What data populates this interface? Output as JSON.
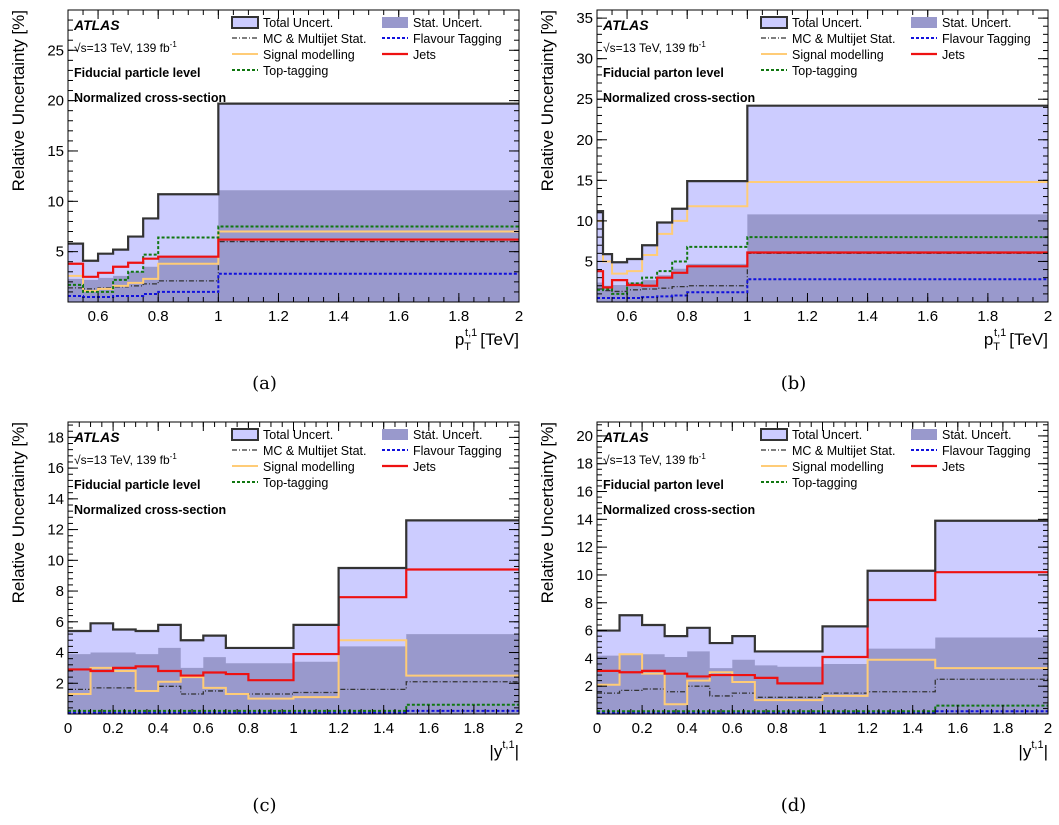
{
  "figure": {
    "captions": [
      "(a)",
      "(b)",
      "(c)",
      "(d)"
    ]
  },
  "legend_labels": {
    "total": "Total Uncert.",
    "stat": "Stat. Uncert.",
    "mc": "MC & Multijet Stat.",
    "flav": "Flavour Tagging",
    "signal": "Signal modelling",
    "jets": "Jets",
    "toptag": "Top-tagging"
  },
  "colors": {
    "total_fill": "#ccccff",
    "stat_fill": "#9999cc",
    "total_line": "#333333",
    "mc_line": "#333333",
    "flav_line": "#1111dd",
    "signal_line": "#ffcc77",
    "jets_line": "#ee1111",
    "toptag_line": "#117711"
  },
  "chart_data": [
    {
      "type": "line",
      "panel": "(a)",
      "experiment": "ATLAS",
      "energy_lumi": "√s=13 TeV, 139 fb",
      "lumi_sup": "-1",
      "level": "Fiducial particle level",
      "normalization": "Normalized cross-section",
      "xlabel": "p",
      "xlabel_sub": "T",
      "xlabel_sup": "t,1",
      "xlabel_unit": "[TeV]",
      "ylabel": "Relative Uncertainty [%]",
      "xlim": [
        0.5,
        2.0
      ],
      "ylim": [
        0,
        29
      ],
      "xticks": [
        0.6,
        0.8,
        1.0,
        1.2,
        1.4,
        1.6,
        1.8,
        2.0
      ],
      "xtick_labels": [
        "0.6",
        "0.8",
        "1",
        "1.2",
        "1.4",
        "1.6",
        "1.8",
        "2"
      ],
      "yticks": [
        5,
        10,
        15,
        20,
        25
      ],
      "ytick_labels": [
        "5",
        "10",
        "15",
        "20",
        "25"
      ],
      "bin_edges": [
        0.5,
        0.55,
        0.6,
        0.65,
        0.7,
        0.75,
        0.8,
        1.0,
        2.0
      ],
      "total": [
        5.8,
        4.1,
        4.8,
        5.2,
        6.5,
        8.3,
        10.7,
        19.7
      ],
      "stat": [
        2.3,
        2.2,
        2.4,
        2.6,
        3.0,
        3.5,
        4.6,
        11.1
      ],
      "series": [
        {
          "name": "MC & Multijet Stat.",
          "key": "mc",
          "values": [
            1.4,
            1.3,
            1.4,
            1.5,
            1.6,
            1.8,
            2.1,
            6.0
          ]
        },
        {
          "name": "Flavour Tagging",
          "key": "flav",
          "values": [
            0.6,
            0.5,
            0.5,
            0.6,
            0.6,
            0.8,
            1.0,
            2.8
          ]
        },
        {
          "name": "Signal modelling",
          "key": "signal",
          "values": [
            2.6,
            1.1,
            1.3,
            1.6,
            1.9,
            2.3,
            3.8,
            7.0
          ]
        },
        {
          "name": "Top-tagging",
          "key": "toptag",
          "values": [
            1.7,
            1.0,
            1.0,
            2.2,
            3.0,
            4.7,
            6.4,
            7.5
          ]
        },
        {
          "name": "Jets",
          "key": "jets",
          "values": [
            3.8,
            2.5,
            2.9,
            3.5,
            3.9,
            4.3,
            4.5,
            6.2
          ]
        }
      ]
    },
    {
      "type": "line",
      "panel": "(b)",
      "experiment": "ATLAS",
      "energy_lumi": "√s=13 TeV, 139 fb",
      "lumi_sup": "-1",
      "level": "Fiducial parton level",
      "normalization": "Normalized cross-section",
      "xlabel": "p",
      "xlabel_sub": "T",
      "xlabel_sup": "t,1",
      "xlabel_unit": "[TeV]",
      "ylabel": "Relative Uncertainty [%]",
      "xlim": [
        0.5,
        2.0
      ],
      "ylim": [
        0,
        36
      ],
      "xticks": [
        0.6,
        0.8,
        1.0,
        1.2,
        1.4,
        1.6,
        1.8,
        2.0
      ],
      "xtick_labels": [
        "0.6",
        "0.8",
        "1",
        "1.2",
        "1.4",
        "1.6",
        "1.8",
        "2"
      ],
      "yticks": [
        5,
        10,
        15,
        20,
        25,
        30,
        35
      ],
      "ytick_labels": [
        "5",
        "10",
        "15",
        "20",
        "25",
        "30",
        "35"
      ],
      "bin_edges": [
        0.5,
        0.52,
        0.55,
        0.6,
        0.65,
        0.7,
        0.75,
        0.8,
        1.0,
        2.0
      ],
      "total": [
        11.2,
        5.9,
        4.9,
        5.3,
        7.0,
        9.8,
        11.5,
        14.9,
        24.2
      ],
      "stat": [
        2.4,
        2.0,
        2.1,
        2.4,
        2.7,
        3.3,
        4.1,
        4.7,
        10.8
      ],
      "series": [
        {
          "name": "MC & Multijet Stat.",
          "key": "mc",
          "values": [
            1.6,
            1.4,
            1.3,
            1.5,
            1.6,
            1.7,
            1.9,
            2.0,
            6.0
          ]
        },
        {
          "name": "Flavour Tagging",
          "key": "flav",
          "values": [
            0.5,
            0.5,
            0.5,
            0.5,
            0.6,
            0.7,
            0.8,
            1.2,
            2.8
          ]
        },
        {
          "name": "Signal modelling",
          "key": "signal",
          "values": [
            10.0,
            5.0,
            3.5,
            3.8,
            5.8,
            8.4,
            10.0,
            11.8,
            14.8
          ]
        },
        {
          "name": "Top-tagging",
          "key": "toptag",
          "values": [
            1.5,
            1.6,
            1.0,
            2.3,
            3.0,
            3.8,
            5.0,
            6.8,
            8.0
          ]
        },
        {
          "name": "Jets",
          "key": "jets",
          "values": [
            3.8,
            1.8,
            2.7,
            2.1,
            2.0,
            3.0,
            3.6,
            4.4,
            6.1
          ]
        }
      ]
    },
    {
      "type": "line",
      "panel": "(c)",
      "experiment": "ATLAS",
      "energy_lumi": "√s=13 TeV, 139 fb",
      "lumi_sup": "-1",
      "level": "Fiducial particle level",
      "normalization": "Normalized cross-section",
      "xlabel": "|y",
      "xlabel_sub": "",
      "xlabel_sup": "t,1",
      "xlabel_unit": "|",
      "ylabel": "Relative Uncertainty [%]",
      "xlim": [
        0,
        2.0
      ],
      "ylim": [
        0,
        19
      ],
      "xticks": [
        0,
        0.2,
        0.4,
        0.6,
        0.8,
        1.0,
        1.2,
        1.4,
        1.6,
        1.8,
        2.0
      ],
      "xtick_labels": [
        "0",
        "0.2",
        "0.4",
        "0.6",
        "0.8",
        "1",
        "1.2",
        "1.4",
        "1.6",
        "1.8",
        "2"
      ],
      "yticks": [
        2,
        4,
        6,
        8,
        10,
        12,
        14,
        16,
        18
      ],
      "ytick_labels": [
        "2",
        "4",
        "6",
        "8",
        "10",
        "12",
        "14",
        "16",
        "18"
      ],
      "bin_edges": [
        0,
        0.1,
        0.2,
        0.3,
        0.4,
        0.5,
        0.6,
        0.7,
        0.8,
        1.0,
        1.2,
        1.5,
        2.0
      ],
      "total": [
        5.4,
        5.9,
        5.5,
        5.4,
        5.8,
        4.8,
        5.1,
        4.3,
        4.3,
        5.8,
        9.5,
        12.6
      ],
      "stat": [
        3.9,
        4.0,
        4.0,
        3.9,
        4.3,
        3.0,
        3.7,
        3.3,
        3.3,
        3.4,
        4.4,
        5.2
      ],
      "series": [
        {
          "name": "MC & Multijet Stat.",
          "key": "mc",
          "values": [
            1.6,
            1.7,
            1.7,
            1.5,
            1.8,
            1.3,
            1.5,
            1.3,
            1.3,
            1.4,
            1.6,
            2.1
          ]
        },
        {
          "name": "Flavour Tagging",
          "key": "flav",
          "values": [
            0.1,
            0.1,
            0.1,
            0.1,
            0.1,
            0.1,
            0.1,
            0.1,
            0.1,
            0.1,
            0.1,
            0.2
          ]
        },
        {
          "name": "Signal modelling",
          "key": "signal",
          "values": [
            1.3,
            3.0,
            2.8,
            1.5,
            2.1,
            2.4,
            1.7,
            1.3,
            1.0,
            1.1,
            4.8,
            2.5
          ]
        },
        {
          "name": "Top-tagging",
          "key": "toptag",
          "values": [
            0.2,
            0.2,
            0.2,
            0.2,
            0.2,
            0.2,
            0.2,
            0.2,
            0.2,
            0.2,
            0.2,
            0.6
          ]
        },
        {
          "name": "Jets",
          "key": "jets",
          "values": [
            2.9,
            2.8,
            3.0,
            3.1,
            2.8,
            2.5,
            2.7,
            2.6,
            2.2,
            3.9,
            7.6,
            9.4
          ]
        }
      ]
    },
    {
      "type": "line",
      "panel": "(d)",
      "experiment": "ATLAS",
      "energy_lumi": "√s=13 TeV, 139 fb",
      "lumi_sup": "-1",
      "level": "Fiducial parton level",
      "normalization": "Normalized cross-section",
      "xlabel": "|y",
      "xlabel_sub": "",
      "xlabel_sup": "t,1",
      "xlabel_unit": "|",
      "ylabel": "Relative Uncertainty [%]",
      "xlim": [
        0,
        2.0
      ],
      "ylim": [
        0,
        21
      ],
      "xticks": [
        0,
        0.2,
        0.4,
        0.6,
        0.8,
        1.0,
        1.2,
        1.4,
        1.6,
        1.8,
        2.0
      ],
      "xtick_labels": [
        "0",
        "0.2",
        "0.4",
        "0.6",
        "0.8",
        "1",
        "1.2",
        "1.4",
        "1.6",
        "1.8",
        "2"
      ],
      "yticks": [
        2,
        4,
        6,
        8,
        10,
        12,
        14,
        16,
        18,
        20
      ],
      "ytick_labels": [
        "2",
        "4",
        "6",
        "8",
        "10",
        "12",
        "14",
        "16",
        "18",
        "20"
      ],
      "bin_edges": [
        0,
        0.1,
        0.2,
        0.3,
        0.4,
        0.5,
        0.6,
        0.7,
        0.8,
        1.0,
        1.2,
        1.5,
        2.0
      ],
      "total": [
        6.0,
        7.1,
        6.4,
        5.6,
        6.2,
        5.1,
        5.6,
        4.5,
        4.5,
        6.3,
        10.3,
        13.9
      ],
      "stat": [
        4.2,
        4.3,
        4.3,
        4.1,
        4.5,
        3.3,
        3.9,
        3.5,
        3.4,
        3.6,
        4.7,
        5.5
      ],
      "series": [
        {
          "name": "MC & Multijet Stat.",
          "key": "mc",
          "values": [
            1.5,
            1.7,
            1.8,
            1.6,
            2.0,
            1.3,
            1.5,
            1.2,
            1.2,
            1.5,
            1.6,
            2.5
          ]
        },
        {
          "name": "Flavour Tagging",
          "key": "flav",
          "values": [
            0.1,
            0.1,
            0.1,
            0.1,
            0.1,
            0.1,
            0.1,
            0.1,
            0.1,
            0.1,
            0.1,
            0.2
          ]
        },
        {
          "name": "Signal modelling",
          "key": "signal",
          "values": [
            2.1,
            4.3,
            2.9,
            0.7,
            2.4,
            3.0,
            2.3,
            1.0,
            1.0,
            1.3,
            3.9,
            3.3
          ]
        },
        {
          "name": "Top-tagging",
          "key": "toptag",
          "values": [
            0.2,
            0.2,
            0.2,
            0.2,
            0.2,
            0.2,
            0.2,
            0.2,
            0.2,
            0.2,
            0.2,
            0.6
          ]
        },
        {
          "name": "Jets",
          "key": "jets",
          "values": [
            3.1,
            3.0,
            3.1,
            2.9,
            2.7,
            2.8,
            2.8,
            2.6,
            2.2,
            4.1,
            8.2,
            10.2
          ]
        }
      ]
    }
  ]
}
